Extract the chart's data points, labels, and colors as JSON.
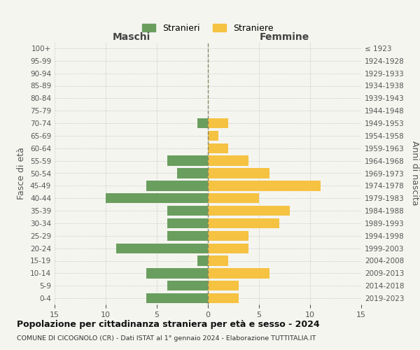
{
  "age_groups": [
    "0-4",
    "5-9",
    "10-14",
    "15-19",
    "20-24",
    "25-29",
    "30-34",
    "35-39",
    "40-44",
    "45-49",
    "50-54",
    "55-59",
    "60-64",
    "65-69",
    "70-74",
    "75-79",
    "80-84",
    "85-89",
    "90-94",
    "95-99",
    "100+"
  ],
  "birth_years": [
    "2019-2023",
    "2014-2018",
    "2009-2013",
    "2004-2008",
    "1999-2003",
    "1994-1998",
    "1989-1993",
    "1984-1988",
    "1979-1983",
    "1974-1978",
    "1969-1973",
    "1964-1968",
    "1959-1963",
    "1954-1958",
    "1949-1953",
    "1944-1948",
    "1939-1943",
    "1934-1938",
    "1929-1933",
    "1924-1928",
    "≤ 1923"
  ],
  "males": [
    6,
    4,
    6,
    1,
    9,
    4,
    4,
    4,
    10,
    6,
    3,
    4,
    0,
    0,
    1,
    0,
    0,
    0,
    0,
    0,
    0
  ],
  "females": [
    3,
    3,
    6,
    2,
    4,
    4,
    7,
    8,
    5,
    11,
    6,
    4,
    2,
    1,
    2,
    0,
    0,
    0,
    0,
    0,
    0
  ],
  "male_color": "#6a9e5e",
  "female_color": "#f5c242",
  "background_color": "#f5f5f0",
  "title": "Popolazione per cittadinanza straniera per età e sesso - 2024",
  "subtitle": "COMUNE DI CICOGNOLO (CR) - Dati ISTAT al 1° gennaio 2024 - Elaborazione TUTTITALIA.IT",
  "xlabel_left": "Maschi",
  "xlabel_right": "Femmine",
  "ylabel_left": "Fasce di età",
  "ylabel_right": "Anni di nascita",
  "legend_male": "Stranieri",
  "legend_female": "Straniere",
  "xlim": 15,
  "bar_height": 0.8
}
